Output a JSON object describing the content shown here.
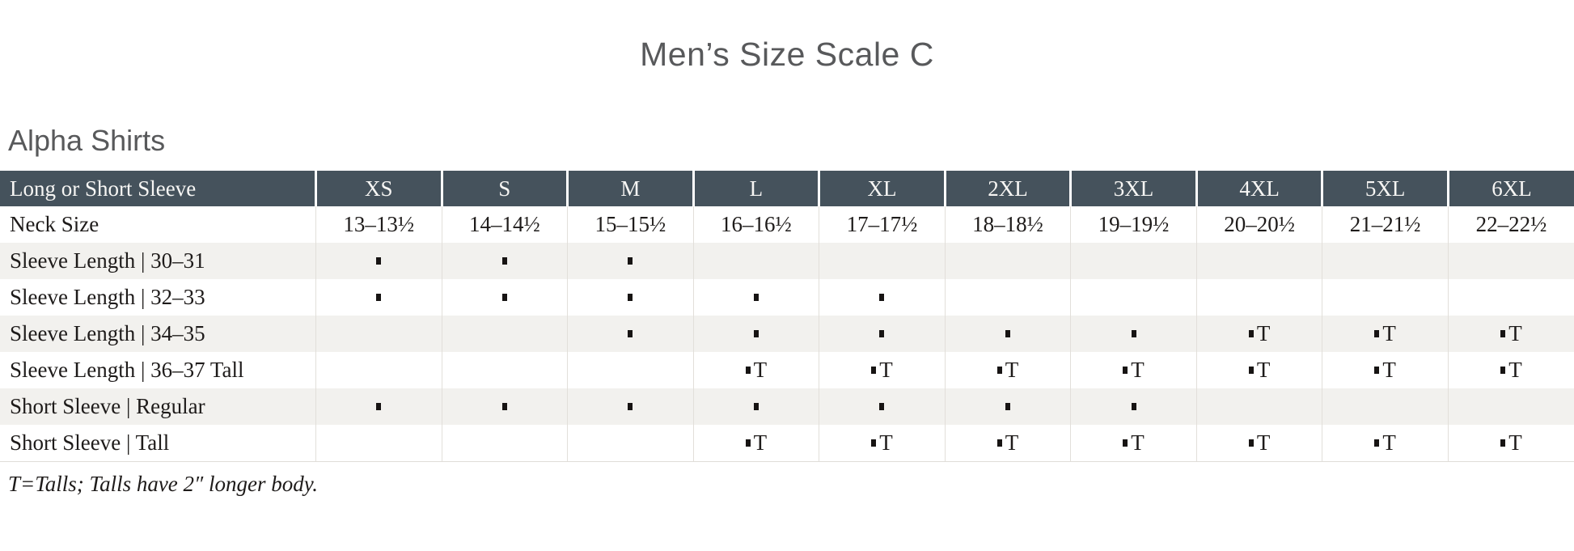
{
  "page": {
    "title": "Men’s Size Scale C",
    "section_heading": "Alpha Shirts",
    "footnote": "T=Talls; Talls have 2″ longer body."
  },
  "table": {
    "corner_label": "Long or Short Sleeve",
    "size_headers": [
      "XS",
      "S",
      "M",
      "L",
      "XL",
      "2XL",
      "3XL",
      "4XL",
      "5XL",
      "6XL"
    ],
    "tall_suffix": "T",
    "rows": [
      {
        "label": "Neck Size",
        "type": "text",
        "cells": [
          "13–13½",
          "14–14½",
          "15–15½",
          "16–16½",
          "17–17½",
          "18–18½",
          "19–19½",
          "20–20½",
          "21–21½",
          "22–22½"
        ]
      },
      {
        "label": "Sleeve Length | 30–31",
        "type": "marks",
        "cells": [
          "dot",
          "dot",
          "dot",
          "",
          "",
          "",
          "",
          "",
          "",
          ""
        ]
      },
      {
        "label": "Sleeve Length | 32–33",
        "type": "marks",
        "cells": [
          "dot",
          "dot",
          "dot",
          "dot",
          "dot",
          "",
          "",
          "",
          "",
          ""
        ]
      },
      {
        "label": "Sleeve Length | 34–35",
        "type": "marks",
        "cells": [
          "",
          "",
          "dot",
          "dot",
          "dot",
          "dot",
          "dot",
          "dotT",
          "dotT",
          "dotT"
        ]
      },
      {
        "label": "Sleeve Length | 36–37 Tall",
        "type": "marks",
        "cells": [
          "",
          "",
          "",
          "dotT",
          "dotT",
          "dotT",
          "dotT",
          "dotT",
          "dotT",
          "dotT"
        ]
      },
      {
        "label": "Short Sleeve | Regular",
        "type": "marks",
        "cells": [
          "dot",
          "dot",
          "dot",
          "dot",
          "dot",
          "dot",
          "dot",
          "",
          "",
          ""
        ]
      },
      {
        "label": "Short Sleeve | Tall",
        "type": "marks",
        "cells": [
          "",
          "",
          "",
          "dotT",
          "dotT",
          "dotT",
          "dotT",
          "dotT",
          "dotT",
          "dotT"
        ]
      }
    ]
  },
  "colors": {
    "header_bg": "#45525c",
    "header_text": "#f7f6f4",
    "alt_row_bg": "#f2f1ee",
    "body_text": "#1e1b1a",
    "heading_text": "#58595b",
    "grid_line": "#e2dfda"
  }
}
